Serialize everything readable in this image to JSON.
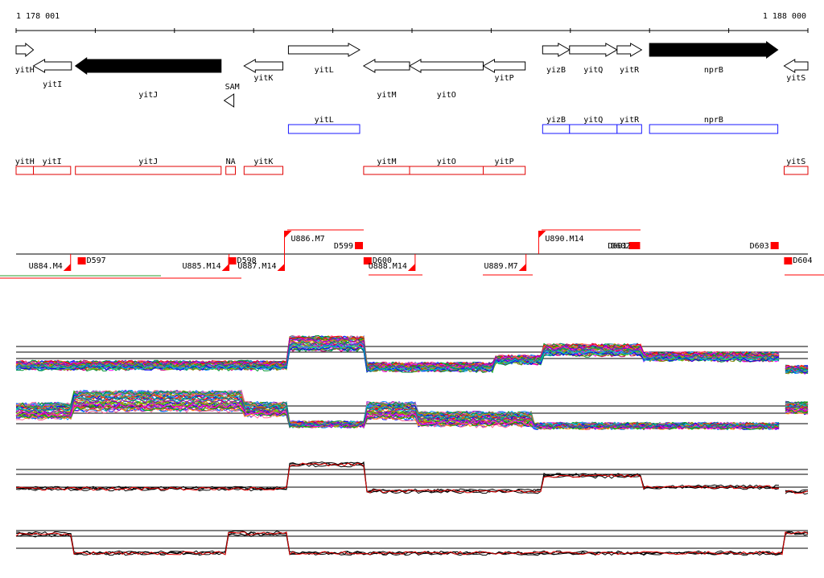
{
  "view": {
    "start_coordinate_label": "1 178 001",
    "end_coordinate_label": "1 188 000",
    "start_bp": 1178001,
    "end_bp": 1188000
  },
  "colors": {
    "gene_outline": "#000000",
    "gene_fill_highlight": "#000000",
    "operon_box": "#1a1aff",
    "transcript_box": "#e00000",
    "segment_marker": "#ff0000",
    "profile_line_mean": "#e00000",
    "profile_line_replicates": "#000000",
    "background": "#ffffff"
  },
  "genes": [
    {
      "name": "yitH",
      "start": 1178001,
      "end": 1178220,
      "strand": "+",
      "highlight": false
    },
    {
      "name": "yitI",
      "start": 1178220,
      "end": 1178700,
      "strand": "-",
      "highlight": false
    },
    {
      "name": "yitJ",
      "start": 1178750,
      "end": 1180590,
      "strand": "-",
      "highlight": true
    },
    {
      "name": "yitK",
      "start": 1180880,
      "end": 1181370,
      "strand": "-",
      "highlight": false
    },
    {
      "name": "yitL",
      "start": 1181440,
      "end": 1182340,
      "strand": "+",
      "highlight": false
    },
    {
      "name": "yitM",
      "start": 1182390,
      "end": 1182970,
      "strand": "-",
      "highlight": false
    },
    {
      "name": "yitO",
      "start": 1182970,
      "end": 1183900,
      "strand": "-",
      "highlight": false
    },
    {
      "name": "yitP",
      "start": 1183900,
      "end": 1184430,
      "strand": "-",
      "highlight": false
    },
    {
      "name": "yizB",
      "start": 1184650,
      "end": 1184990,
      "strand": "+",
      "highlight": false
    },
    {
      "name": "yitQ",
      "start": 1184990,
      "end": 1185590,
      "strand": "+",
      "highlight": false
    },
    {
      "name": "yitR",
      "start": 1185590,
      "end": 1185900,
      "strand": "+",
      "highlight": false
    },
    {
      "name": "nprB",
      "start": 1186000,
      "end": 1187620,
      "strand": "+",
      "highlight": true
    },
    {
      "name": "yitS",
      "start": 1187700,
      "end": 1188000,
      "strand": "-",
      "highlight": false
    }
  ],
  "riboswitch": {
    "name": "SAM",
    "position": 1180690
  },
  "operons_blue": [
    {
      "name": "yitL",
      "start": 1181440,
      "end": 1182340
    },
    {
      "name": "yizB",
      "start": 1184650,
      "end": 1184990
    },
    {
      "name": "yitQ",
      "start": 1184990,
      "end": 1185590
    },
    {
      "name": "yitR",
      "start": 1185590,
      "end": 1185900
    },
    {
      "name": "nprB",
      "start": 1186000,
      "end": 1187620
    }
  ],
  "transcripts_red": [
    {
      "name": "yitH",
      "start": 1178001,
      "end": 1178220
    },
    {
      "name": "yitI",
      "start": 1178220,
      "end": 1178690
    },
    {
      "name": "yitJ",
      "start": 1178750,
      "end": 1180590
    },
    {
      "name": "NA",
      "start": 1180650,
      "end": 1180770
    },
    {
      "name": "yitK",
      "start": 1180880,
      "end": 1181370
    },
    {
      "name": "yitM",
      "start": 1182390,
      "end": 1182970
    },
    {
      "name": "yitO",
      "start": 1182970,
      "end": 1183900
    },
    {
      "name": "yitP",
      "start": 1183900,
      "end": 1184430
    },
    {
      "name": "yitS",
      "start": 1187700,
      "end": 1188000
    }
  ],
  "segments": [
    {
      "label": "U884.M4",
      "kind": "up",
      "position": 1178720
    },
    {
      "label": "D597",
      "kind": "down",
      "position": 1178830
    },
    {
      "label": "U885.M14",
      "kind": "up",
      "position": 1180690
    },
    {
      "label": "D598",
      "kind": "down",
      "position": 1180730
    },
    {
      "label": "U887.M14",
      "kind": "up",
      "position": 1181390
    },
    {
      "label": "U886.M7",
      "kind": "up",
      "position": 1181390
    },
    {
      "label": "D599",
      "kind": "down",
      "position": 1182330
    },
    {
      "label": "D600",
      "kind": "down",
      "position": 1182440
    },
    {
      "label": "U888.M14",
      "kind": "up",
      "position": 1183040
    },
    {
      "label": "U889.M7",
      "kind": "up",
      "position": 1184440
    },
    {
      "label": "U890.M14",
      "kind": "up",
      "position": 1184600
    },
    {
      "label": "D601",
      "kind": "down",
      "position": 1185790
    },
    {
      "label": "D602",
      "kind": "down",
      "position": 1185830
    },
    {
      "label": "D603",
      "kind": "down",
      "position": 1187580
    },
    {
      "label": "D604",
      "kind": "down",
      "position": 1187750
    }
  ],
  "expression_panels": [
    {
      "id": "panel-1",
      "series_style": "multicolor"
    },
    {
      "id": "panel-2",
      "series_style": "multicolor"
    },
    {
      "id": "panel-3",
      "series_style": "mean"
    },
    {
      "id": "panel-4",
      "series_style": "mean"
    }
  ]
}
